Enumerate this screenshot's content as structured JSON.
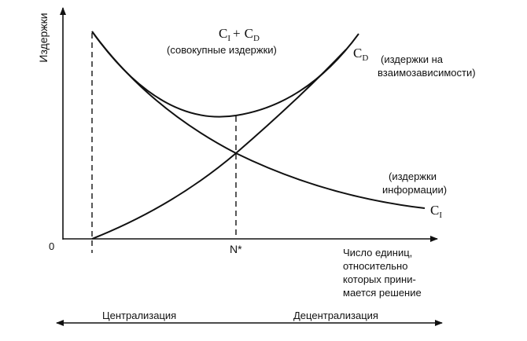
{
  "axes": {
    "y_label": "Издержки",
    "x_label_lines": [
      "Число единиц,",
      "относительно",
      "которых прини-",
      "мается решение"
    ],
    "origin_label": "0",
    "n_star_label": "N*"
  },
  "curves": {
    "total": {
      "symbol": "C",
      "sub1": "I",
      "plus": "+",
      "sub2": "D",
      "name": "(совокупные издержки)"
    },
    "interdependence": {
      "symbol": "C",
      "sub": "D",
      "name_lines": [
        "(издержки на",
        "взаимозависимости)"
      ]
    },
    "information": {
      "symbol": "C",
      "sub": "I",
      "name_lines": [
        "(издержки",
        "информации)"
      ]
    }
  },
  "bottom": {
    "centralization": "Централизация",
    "decentralization": "Децентрализация"
  }
}
